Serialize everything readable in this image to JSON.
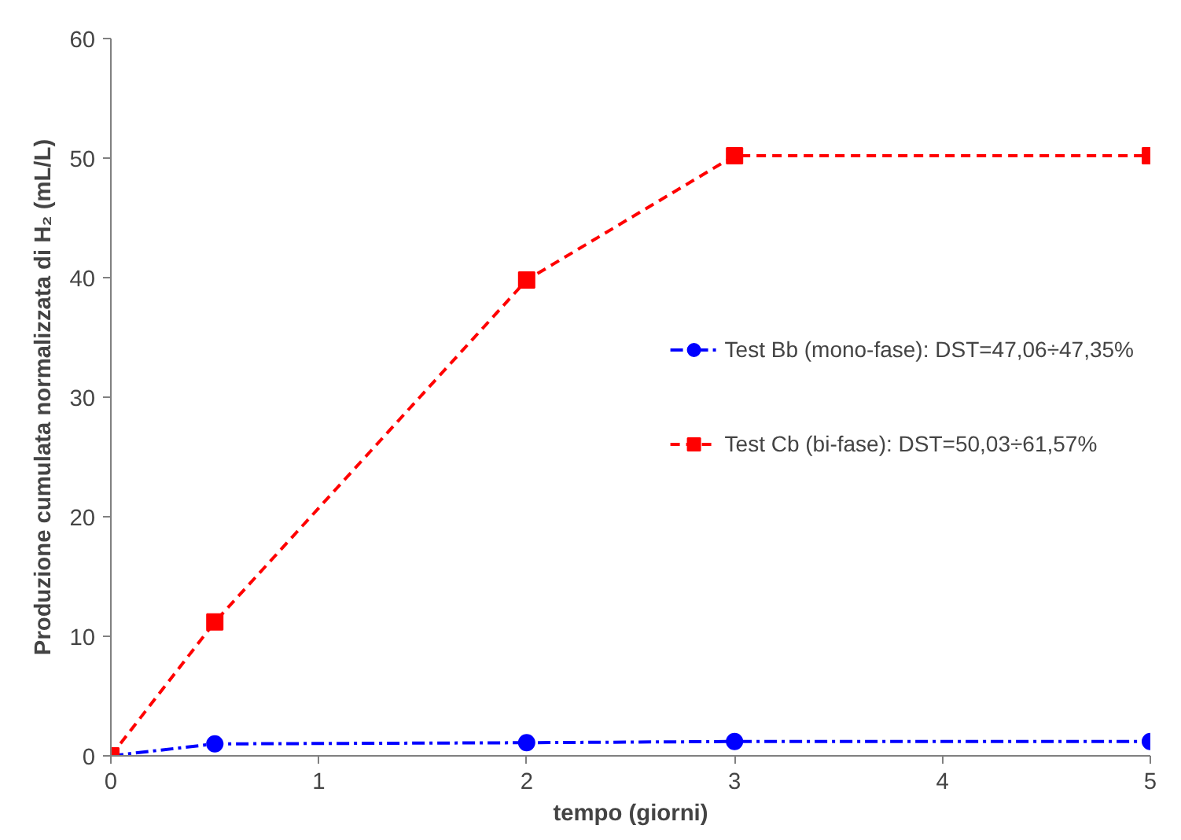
{
  "chart_data": {
    "type": "line",
    "xlabel": "tempo (giorni)",
    "ylabel": "Produzione cumulata normalizzata di H₂ (mL/L)",
    "x": [
      0,
      0.5,
      2,
      3,
      5
    ],
    "series": [
      {
        "name": "Test Bb (mono-fase): DST=47,06÷47,35%",
        "color": "#0000ff",
        "values": [
          0,
          1.0,
          1.1,
          1.2,
          1.2
        ],
        "marker": "circle",
        "line_style": "dashdot"
      },
      {
        "name": "Test Cb (bi-fase): DST=50,03÷61,57%",
        "color": "#ff0000",
        "values": [
          0,
          11.2,
          39.8,
          50.2,
          50.2
        ],
        "marker": "square",
        "line_style": "dashed"
      }
    ],
    "xlim": [
      0,
      5
    ],
    "xticks": [
      0,
      1,
      2,
      3,
      4,
      5
    ],
    "ylim": [
      0,
      60
    ],
    "yticks": [
      0,
      10,
      20,
      30,
      40,
      50,
      60
    ],
    "grid": false,
    "legend": "right"
  }
}
